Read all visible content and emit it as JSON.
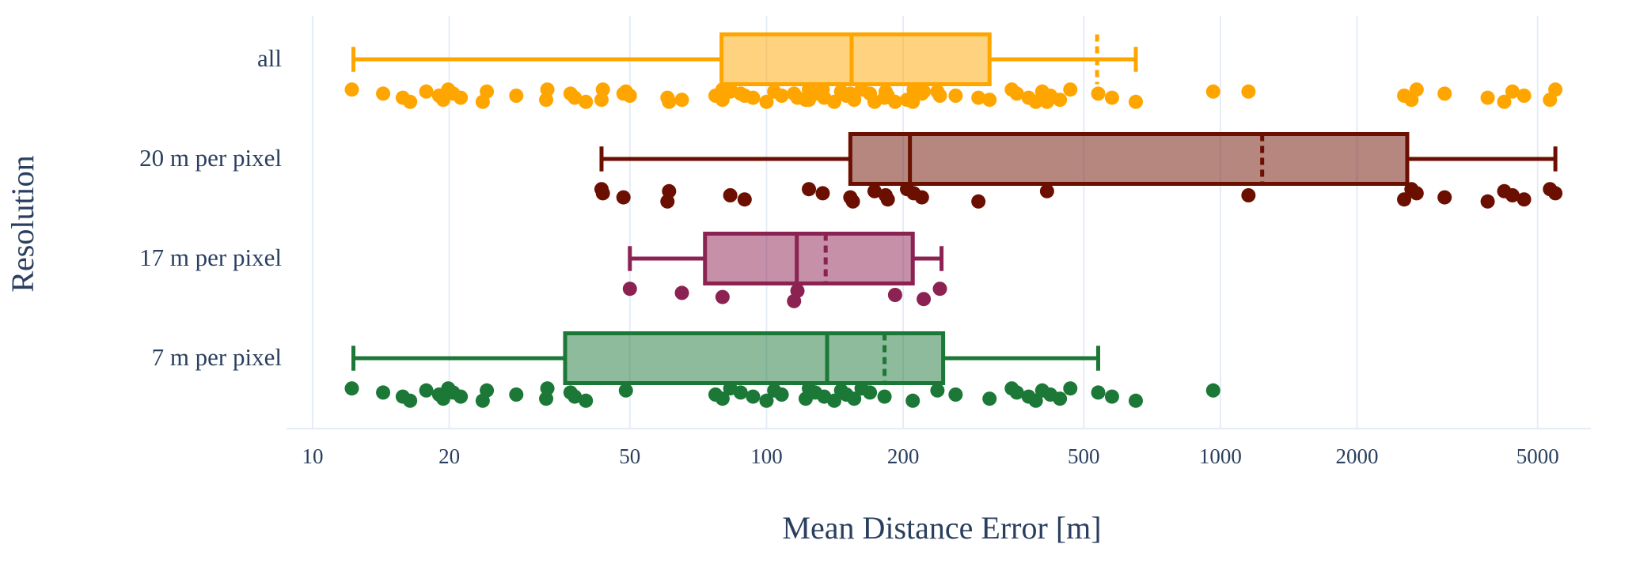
{
  "chart_data": {
    "type": "box",
    "orientation": "horizontal",
    "log_x": true,
    "grid": true,
    "x_label": "Mean Distance Error [m]",
    "y_label": "Resolution",
    "xlim": [
      8.76,
      6550
    ],
    "xticks": [
      10,
      20,
      50,
      100,
      200,
      500,
      1000,
      2000,
      5000
    ],
    "categories": [
      "all",
      "20 m per pixel",
      "17 m per pixel",
      "7 m per pixel"
    ],
    "boxes": [
      {
        "color": "#ffa500",
        "min": 12.3,
        "q1": 79.6,
        "median": 154,
        "mean": 535,
        "q3": 310,
        "max": 651,
        "points": [
          12.2,
          14.3,
          15.8,
          16.4,
          17.8,
          19.0,
          19.4,
          19.9,
          20.4,
          21.2,
          23.7,
          24.2,
          28.1,
          32.7,
          32.9,
          37.0,
          37.8,
          40.0,
          49.0,
          77.2,
          80.0,
          83.2,
          87.7,
          93.4,
          100,
          104,
          108,
          122,
          124,
          128,
          134,
          141,
          146,
          150,
          156,
          162,
          169,
          182,
          210,
          238,
          261,
          310,
          347,
          356,
          378,
          392,
          405,
          422,
          443,
          467,
          538,
          577,
          651,
          964,
          50,
          65.1,
          80,
          115,
          117,
          192,
          222,
          241,
          43.3,
          43.6,
          48.4,
          60.5,
          61,
          83.2,
          89.5,
          124,
          133,
          153,
          155,
          173,
          183,
          185,
          204,
          211,
          220,
          293,
          415,
          1153,
          2540,
          2636,
          2706,
          3119,
          3880,
          4220,
          4400,
          4667,
          5322,
          5470
        ]
      },
      {
        "color": "#6b0f00",
        "min": 43.3,
        "q1": 153,
        "median": 207,
        "mean": 1236,
        "q3": 2580,
        "max": 5470,
        "points": [
          43.3,
          43.6,
          48.4,
          60.5,
          61,
          83.2,
          89.5,
          124,
          133,
          153,
          155,
          173,
          183,
          185,
          204,
          211,
          220,
          293,
          415,
          1153,
          2540,
          2636,
          2706,
          3119,
          3880,
          4220,
          4400,
          4667,
          5322,
          5470
        ]
      },
      {
        "color": "#8b2252",
        "min": 50,
        "q1": 73.2,
        "median": 116.6,
        "mean": 135,
        "q3": 210,
        "max": 243,
        "points": [
          50,
          65.1,
          80,
          115,
          117,
          192,
          222,
          241
        ]
      },
      {
        "color": "#1b7837",
        "min": 12.3,
        "q1": 36,
        "median": 136,
        "mean": 182,
        "q3": 245,
        "max": 538,
        "points": [
          12.2,
          14.3,
          15.8,
          16.4,
          17.8,
          19.0,
          19.4,
          19.9,
          20.4,
          21.2,
          23.7,
          24.2,
          28.1,
          32.7,
          32.9,
          37.0,
          37.8,
          40.0,
          49.0,
          77.2,
          80.0,
          83.2,
          87.7,
          93.4,
          100,
          104,
          108,
          122,
          124,
          128,
          134,
          141,
          146,
          150,
          156,
          162,
          169,
          182,
          210,
          238,
          261,
          310,
          347,
          356,
          378,
          392,
          405,
          422,
          443,
          467,
          538,
          577,
          651,
          964
        ]
      }
    ]
  }
}
